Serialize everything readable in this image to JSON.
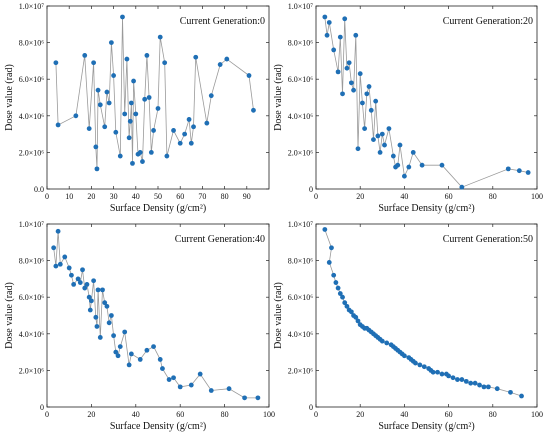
{
  "chart_data": [
    {
      "type": "line",
      "title": "Current Generation:0",
      "xlabel": "Surface Density (g/cm²)",
      "ylabel": "Dose value (rad)",
      "xlim": [
        0,
        100
      ],
      "ylim": [
        0,
        10000000
      ],
      "xticks": [
        0,
        10,
        20,
        30,
        40,
        50,
        60,
        70,
        80,
        90
      ],
      "xtick_labels": [
        "0",
        "10",
        "20",
        "30",
        "40",
        "50",
        "60",
        "70",
        "80",
        "90"
      ],
      "yticks": [
        0,
        2000000,
        4000000,
        6000000,
        8000000,
        10000000
      ],
      "ytick_labels": [
        "0.0",
        "2.0×10⁶",
        "4.0×10⁶",
        "6.0×10⁶",
        "8.0×10⁶",
        "1.0×10⁷"
      ],
      "legend": "none",
      "grid": false,
      "series": [
        {
          "color": "#1f6fb5",
          "x": [
            4,
            5,
            13,
            17,
            19,
            21,
            22,
            22.5,
            23,
            24,
            26,
            27,
            28,
            29,
            30,
            31,
            33,
            34,
            35,
            36,
            37,
            37.5,
            38,
            38.5,
            39,
            40,
            41,
            42,
            43,
            44,
            45,
            46,
            47,
            48,
            50,
            51,
            53,
            54,
            57,
            60,
            62,
            64,
            65,
            66,
            67,
            72,
            74,
            78,
            81,
            91,
            93
          ],
          "y": [
            6900000,
            3500000,
            4000000,
            7300000,
            3300000,
            6900000,
            2300000,
            1100000,
            5400000,
            4600000,
            3400000,
            5300000,
            4700000,
            8000000,
            6200000,
            3100000,
            1800000,
            9400000,
            4100000,
            7100000,
            2800000,
            3700000,
            4700000,
            1400000,
            5900000,
            4100000,
            1900000,
            2000000,
            1500000,
            4900000,
            7300000,
            5000000,
            2000000,
            3200000,
            4400000,
            8300000,
            6900000,
            1800000,
            3200000,
            2500000,
            3000000,
            3800000,
            2500000,
            3400000,
            7200000,
            3600000,
            5100000,
            6800000,
            7100000,
            6200000,
            4300000
          ]
        }
      ]
    },
    {
      "type": "line",
      "title": "Current Generation:20",
      "xlabel": "Surface Density (g/cm²)",
      "ylabel": "Dose value (rad)",
      "xlim": [
        0,
        100
      ],
      "ylim": [
        0,
        10000000
      ],
      "xticks": [
        0,
        20,
        40,
        60,
        80,
        100
      ],
      "xtick_labels": [
        "0",
        "20",
        "40",
        "60",
        "80",
        "100"
      ],
      "yticks": [
        0,
        2000000,
        4000000,
        6000000,
        8000000,
        10000000
      ],
      "ytick_labels": [
        "0",
        "2.0×10⁶",
        "4.0×10⁶",
        "6.0×10⁶",
        "8.0×10⁶",
        "1.0×10⁷"
      ],
      "legend": "none",
      "grid": false,
      "series": [
        {
          "color": "#1f6fb5",
          "x": [
            4,
            5,
            6,
            8,
            10,
            11,
            12,
            13,
            14,
            15,
            16,
            17,
            18,
            19,
            20,
            21,
            22,
            23,
            24,
            25,
            26,
            27,
            28,
            29,
            30,
            31,
            33,
            35,
            36,
            37,
            38,
            40,
            42,
            44,
            48,
            57,
            66,
            87,
            92,
            96
          ],
          "y": [
            9400000,
            8400000,
            9100000,
            7600000,
            6400000,
            8300000,
            5200000,
            9300000,
            6600000,
            6900000,
            5800000,
            5400000,
            8400000,
            2200000,
            6300000,
            4700000,
            3300000,
            5200000,
            5600000,
            4300000,
            2700000,
            4800000,
            2900000,
            2000000,
            3000000,
            2400000,
            3300000,
            1800000,
            1200000,
            1300000,
            2400000,
            700000,
            1200000,
            2000000,
            1300000,
            1300000,
            100000,
            1100000,
            1000000,
            900000
          ]
        }
      ]
    },
    {
      "type": "line",
      "title": "Current Generation:40",
      "xlabel": "Surface Density (g/cm²)",
      "ylabel": "Dose value (rad)",
      "xlim": [
        0,
        100
      ],
      "ylim": [
        0,
        10000000
      ],
      "xticks": [
        0,
        20,
        40,
        60,
        80,
        100
      ],
      "xtick_labels": [
        "0",
        "20",
        "40",
        "60",
        "80",
        "100"
      ],
      "yticks": [
        0,
        2000000,
        4000000,
        6000000,
        8000000,
        10000000
      ],
      "ytick_labels": [
        "0",
        "2.0×10⁶",
        "4.0×10⁶",
        "6.0×10⁶",
        "8.0×10⁶",
        "1.0×10⁷"
      ],
      "legend": "none",
      "grid": false,
      "series": [
        {
          "color": "#1f6fb5",
          "x": [
            3,
            4,
            5,
            6,
            8,
            10,
            11,
            12,
            14,
            15,
            16,
            17,
            18,
            19,
            19.5,
            20,
            21,
            22,
            22.5,
            23,
            24,
            25,
            26,
            27,
            28,
            29,
            30,
            31,
            32,
            33,
            35,
            37,
            38,
            42,
            45,
            48,
            51,
            52,
            55,
            57,
            60,
            65,
            69,
            74,
            82,
            89,
            95
          ],
          "y": [
            8700000,
            7700000,
            9600000,
            7800000,
            8200000,
            7600000,
            7200000,
            6700000,
            7000000,
            6800000,
            7500000,
            6500000,
            6700000,
            6000000,
            5300000,
            5800000,
            6900000,
            4900000,
            4400000,
            6400000,
            3800000,
            6400000,
            5700000,
            5500000,
            4600000,
            5000000,
            3900000,
            3000000,
            2800000,
            3300000,
            4100000,
            2300000,
            2900000,
            2600000,
            3100000,
            3300000,
            2600000,
            2100000,
            1500000,
            1600000,
            1100000,
            1200000,
            1800000,
            900000,
            1000000,
            500000,
            500000
          ]
        }
      ]
    },
    {
      "type": "line",
      "title": "Current Generation:50",
      "xlabel": "Surface Density (g/cm²)",
      "ylabel": "Dose value (rad)",
      "xlim": [
        0,
        100
      ],
      "ylim": [
        0,
        10000000
      ],
      "xticks": [
        0,
        20,
        40,
        60,
        80,
        100
      ],
      "xtick_labels": [
        "0",
        "20",
        "40",
        "60",
        "80",
        "100"
      ],
      "yticks": [
        0,
        2000000,
        4000000,
        6000000,
        8000000,
        10000000
      ],
      "ytick_labels": [
        "0",
        "2.0×10⁶",
        "4.0×10⁶",
        "6.0×10⁶",
        "8.0×10⁶",
        "1.0×10⁷"
      ],
      "legend": "none",
      "grid": false,
      "series": [
        {
          "color": "#1f6fb5",
          "x": [
            4,
            7,
            6,
            8,
            9,
            10,
            11,
            12,
            13,
            14,
            15,
            16,
            17,
            18,
            19,
            20,
            21,
            22,
            23,
            24,
            25,
            26,
            27,
            28,
            29,
            30,
            32,
            34,
            35,
            36,
            37,
            38,
            39,
            40,
            42,
            43,
            44,
            45,
            47,
            49,
            51,
            52,
            53,
            55,
            57,
            59,
            60,
            62,
            64,
            66,
            68,
            70,
            72,
            74,
            76,
            78,
            82,
            88,
            93
          ],
          "y": [
            9700000,
            8700000,
            7900000,
            7200000,
            6800000,
            6500000,
            6200000,
            6000000,
            5700000,
            5500000,
            5300000,
            5200000,
            5000000,
            4900000,
            4700000,
            4500000,
            4400000,
            4300000,
            4300000,
            4200000,
            4100000,
            4000000,
            3900000,
            3800000,
            3700000,
            3600000,
            3500000,
            3400000,
            3300000,
            3200000,
            3100000,
            3000000,
            2900000,
            2800000,
            2700000,
            2600000,
            2500000,
            2400000,
            2300000,
            2200000,
            2100000,
            2000000,
            1900000,
            1900000,
            1800000,
            1800000,
            1700000,
            1600000,
            1500000,
            1500000,
            1400000,
            1300000,
            1300000,
            1200000,
            1100000,
            1100000,
            1000000,
            800000,
            600000
          ]
        }
      ]
    }
  ]
}
